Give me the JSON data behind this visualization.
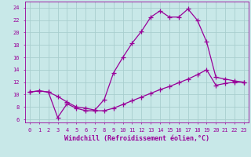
{
  "title": "",
  "xlabel": "Windchill (Refroidissement éolien,°C)",
  "ylabel": "",
  "bg_color": "#c8e8e8",
  "grid_color": "#a8cece",
  "line_color": "#990099",
  "xlim": [
    -0.5,
    23.5
  ],
  "ylim": [
    5.5,
    25.0
  ],
  "xticks": [
    0,
    1,
    2,
    3,
    4,
    5,
    6,
    7,
    8,
    9,
    10,
    11,
    12,
    13,
    14,
    15,
    16,
    17,
    18,
    19,
    20,
    21,
    22,
    23
  ],
  "yticks": [
    6,
    8,
    10,
    12,
    14,
    16,
    18,
    20,
    22,
    24
  ],
  "line1_x": [
    0,
    1,
    2,
    3,
    4,
    5,
    6,
    7,
    8,
    9,
    10,
    11,
    12,
    13,
    14,
    15,
    16,
    17,
    18,
    19,
    20,
    21,
    22,
    23
  ],
  "line1_y": [
    10.4,
    10.6,
    10.4,
    9.7,
    8.8,
    8.0,
    7.8,
    7.5,
    9.2,
    13.5,
    16.0,
    18.3,
    20.2,
    22.5,
    23.5,
    22.5,
    22.5,
    23.8,
    22.0,
    18.5,
    12.8,
    12.5,
    12.2,
    12.0
  ],
  "line2_x": [
    0,
    1,
    2,
    3,
    4,
    5,
    6,
    7,
    8,
    9,
    10,
    11,
    12,
    13,
    14,
    15,
    16,
    17,
    18,
    19,
    20,
    21,
    22,
    23
  ],
  "line2_y": [
    10.4,
    10.6,
    10.4,
    6.3,
    8.5,
    7.8,
    7.4,
    7.4,
    7.4,
    7.8,
    8.4,
    9.0,
    9.6,
    10.2,
    10.8,
    11.3,
    11.9,
    12.5,
    13.2,
    14.0,
    11.5,
    11.8,
    12.0,
    12.0
  ],
  "marker": "+",
  "markersize": 4,
  "linewidth": 0.9,
  "tick_fontsize": 5.0,
  "label_fontsize": 6.0
}
